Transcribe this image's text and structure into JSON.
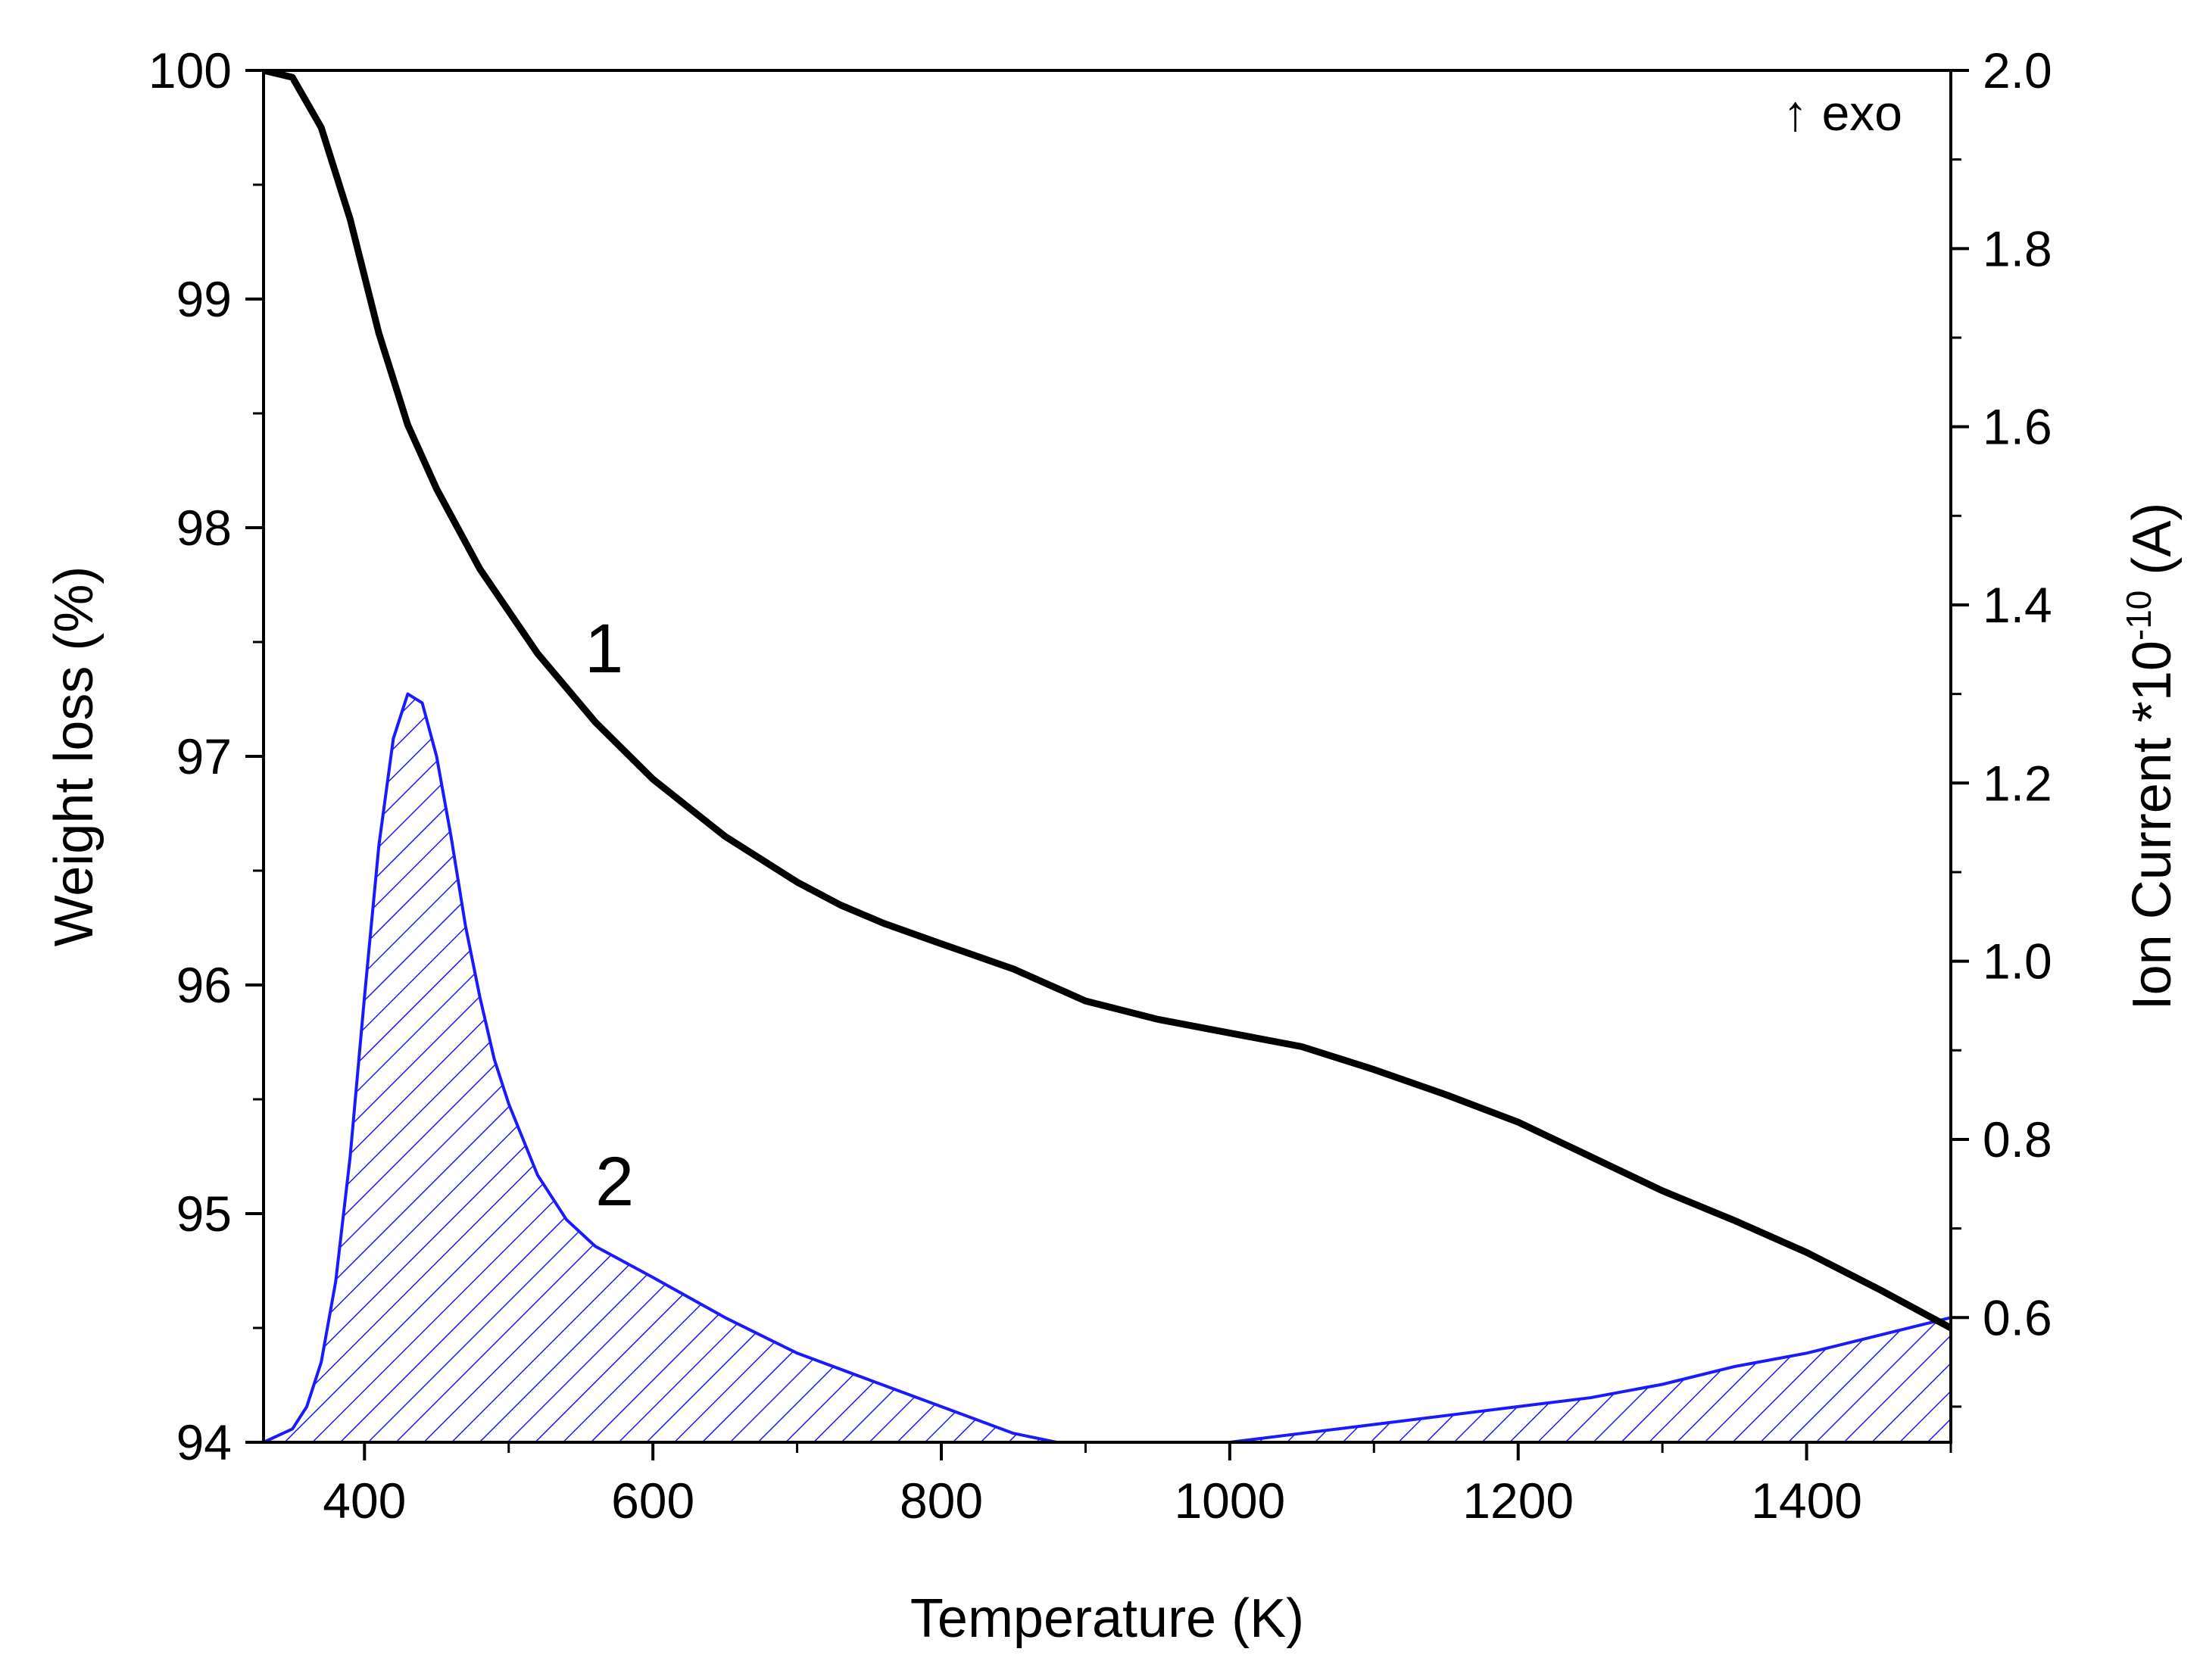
{
  "chart_data": {
    "type": "line",
    "xlabel": "Temperature (K)",
    "ylabel_left": "Weight loss (%)",
    "ylabel_right_prefix": "Ion Current *10",
    "ylabel_right_exp": "-10",
    "ylabel_right_suffix": " (A)",
    "annotation": "↑ exo",
    "xlim": [
      330,
      1500
    ],
    "ylim_left": [
      94,
      100
    ],
    "ylim_right": [
      0.46,
      2.0
    ],
    "x_ticks": [
      "400",
      "600",
      "800",
      "1000",
      "1200",
      "1400"
    ],
    "y_left_ticks": [
      "94",
      "95",
      "96",
      "97",
      "98",
      "99",
      "100"
    ],
    "y_right_ticks": [
      "0.6",
      "0.8",
      "1.0",
      "1.2",
      "1.4",
      "1.6",
      "1.8",
      "2.0"
    ],
    "grid": false,
    "series": [
      {
        "name": "1",
        "axis": "left",
        "color": "#000000",
        "style": "solid-thick",
        "x": [
          330,
          350,
          370,
          390,
          410,
          430,
          450,
          480,
          520,
          560,
          600,
          650,
          700,
          730,
          760,
          800,
          850,
          900,
          950,
          1000,
          1050,
          1100,
          1150,
          1200,
          1250,
          1300,
          1350,
          1400,
          1450,
          1500
        ],
        "y": [
          100.0,
          99.97,
          99.75,
          99.35,
          98.85,
          98.45,
          98.17,
          97.82,
          97.45,
          97.15,
          96.9,
          96.65,
          96.45,
          96.35,
          96.27,
          96.18,
          96.07,
          95.93,
          95.85,
          95.79,
          95.73,
          95.63,
          95.52,
          95.4,
          95.25,
          95.1,
          94.97,
          94.83,
          94.67,
          94.5
        ]
      },
      {
        "name": "2",
        "axis": "right",
        "color": "#1a1aff",
        "style": "hatched-area",
        "x": [
          330,
          350,
          360,
          370,
          380,
          390,
          400,
          410,
          420,
          430,
          440,
          450,
          460,
          470,
          480,
          490,
          500,
          520,
          540,
          560,
          600,
          650,
          700,
          750,
          800,
          850,
          880,
          900,
          950,
          1000,
          1050,
          1100,
          1150,
          1200,
          1250,
          1300,
          1350,
          1400,
          1450,
          1500
        ],
        "y": [
          0.46,
          0.475,
          0.5,
          0.55,
          0.64,
          0.78,
          0.96,
          1.13,
          1.25,
          1.3,
          1.29,
          1.23,
          1.14,
          1.04,
          0.96,
          0.89,
          0.84,
          0.76,
          0.71,
          0.68,
          0.645,
          0.6,
          0.56,
          0.53,
          0.5,
          0.47,
          0.46,
          0.46,
          0.46,
          0.46,
          0.47,
          0.48,
          0.49,
          0.5,
          0.51,
          0.525,
          0.545,
          0.56,
          0.58,
          0.6
        ]
      }
    ]
  }
}
